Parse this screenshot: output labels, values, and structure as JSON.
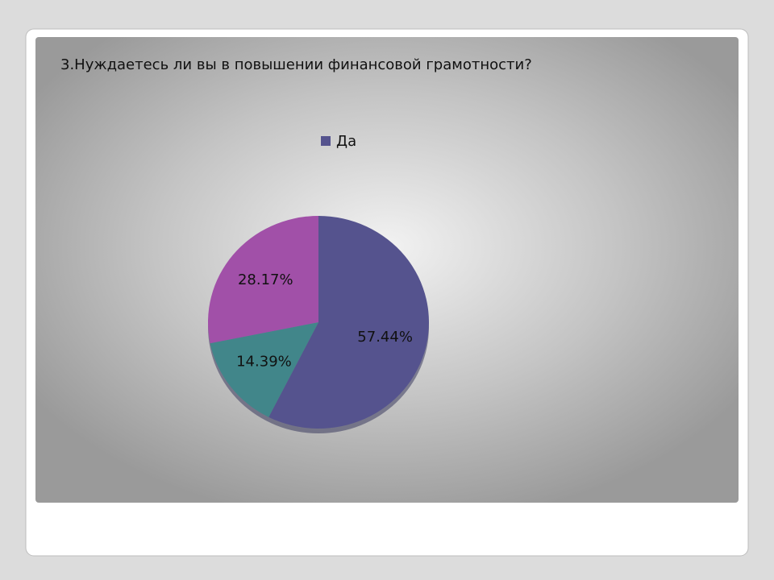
{
  "chart_data": {
    "type": "pie",
    "title": "3.Нуждаетесь ли вы в повышении финансовой грамотности?",
    "categories": [
      "Да",
      null,
      null
    ],
    "values": [
      57.44,
      14.39,
      28.17
    ],
    "value_labels": [
      "57.44%",
      "14.39%",
      "28.17%"
    ],
    "colors": [
      "#55538e",
      "#41868a",
      "#a150a8"
    ],
    "legend": "top"
  }
}
